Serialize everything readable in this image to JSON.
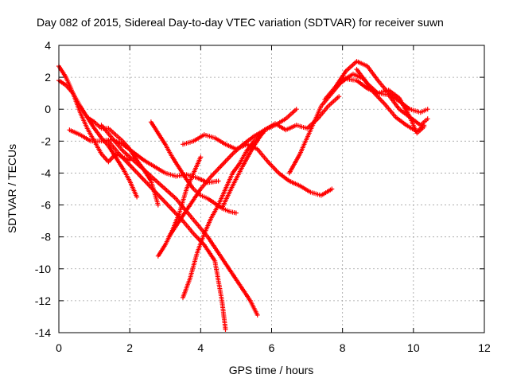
{
  "chart_data": {
    "type": "scatter",
    "title": "Day 082 of 2015, Sidereal Day-to-day VTEC variation (SDTVAR) for receiver suwn",
    "xlabel": "GPS time / hours",
    "ylabel": "SDTVAR / TECUs",
    "xlim": [
      0,
      12
    ],
    "ylim": [
      -14,
      4
    ],
    "x_ticks": [
      "0",
      "2",
      "4",
      "6",
      "8",
      "10",
      "12"
    ],
    "y_ticks": [
      "4",
      "2",
      "0",
      "-2",
      "-4",
      "-6",
      "-8",
      "-10",
      "-12",
      "-14"
    ],
    "grid": true,
    "marker": "+",
    "color": "#ff0000",
    "series": [
      {
        "x": [
          0.0,
          0.2,
          0.4,
          0.6,
          0.8,
          1.0,
          1.2,
          1.4,
          1.6,
          1.8,
          2.0,
          2.2
        ],
        "y": [
          1.8,
          1.5,
          1.0,
          0.2,
          -0.5,
          -1.2,
          -1.8,
          -2.3,
          -3.0,
          -3.7,
          -4.5,
          -5.5
        ]
      },
      {
        "x": [
          0.0,
          0.2,
          0.4,
          0.6,
          0.8,
          1.0,
          1.2,
          1.4,
          1.6,
          1.8,
          2.0
        ],
        "y": [
          2.7,
          2.0,
          1.0,
          -0.2,
          -1.2,
          -2.0,
          -2.8,
          -3.3,
          -2.8,
          -3.0,
          -3.2
        ]
      },
      {
        "x": [
          0.3,
          0.6,
          0.9,
          1.2,
          1.5,
          1.8,
          2.1,
          2.4,
          2.7,
          3.0,
          3.3,
          3.6,
          3.9,
          4.2,
          4.5
        ],
        "y": [
          -1.3,
          -1.6,
          -2.0,
          -2.0,
          -1.9,
          -2.2,
          -2.7,
          -3.2,
          -3.6,
          -4.0,
          -4.2,
          -4.1,
          -4.3,
          -4.6,
          -4.5
        ]
      },
      {
        "x": [
          0.8,
          1.0,
          1.2,
          1.4,
          1.6,
          1.8,
          2.0,
          2.2,
          2.4,
          2.6,
          2.8
        ],
        "y": [
          -0.5,
          -0.8,
          -1.2,
          -1.2,
          -1.6,
          -2.0,
          -2.5,
          -3.2,
          -3.8,
          -4.5,
          -6.0
        ]
      },
      {
        "x": [
          1.2,
          1.5,
          1.8,
          2.1,
          2.4,
          2.7,
          3.0,
          3.3,
          3.6,
          3.9,
          4.2,
          4.5,
          4.8,
          5.1,
          5.4,
          5.6
        ],
        "y": [
          -1.0,
          -1.8,
          -2.6,
          -3.2,
          -3.8,
          -4.4,
          -5.0,
          -5.6,
          -6.4,
          -7.2,
          -8.0,
          -9.0,
          -10.0,
          -11.0,
          -12.0,
          -12.9
        ]
      },
      {
        "x": [
          1.4,
          1.7,
          2.0,
          2.3,
          2.6,
          2.9,
          3.2,
          3.5,
          3.8,
          4.1,
          4.4,
          4.6,
          4.7
        ],
        "y": [
          -2.0,
          -2.8,
          -3.5,
          -4.2,
          -4.9,
          -5.6,
          -6.3,
          -7.0,
          -7.8,
          -8.5,
          -9.5,
          -12.0,
          -13.8
        ]
      },
      {
        "x": [
          2.6,
          2.8,
          3.0,
          3.2,
          3.4,
          3.6,
          3.8,
          4.0,
          4.2,
          4.4,
          4.6,
          4.8,
          5.0
        ],
        "y": [
          -0.8,
          -1.5,
          -2.2,
          -3.0,
          -3.7,
          -4.4,
          -5.0,
          -5.4,
          -5.6,
          -5.9,
          -6.2,
          -6.4,
          -6.5
        ]
      },
      {
        "x": [
          2.8,
          3.0,
          3.2,
          3.4,
          3.6,
          3.8,
          4.0
        ],
        "y": [
          -9.2,
          -8.5,
          -7.6,
          -6.5,
          -5.0,
          -4.0,
          -3.0
        ]
      },
      {
        "x": [
          3.1,
          3.4,
          3.7,
          4.0,
          4.3,
          4.6,
          4.9,
          5.2,
          5.5,
          5.8,
          6.1,
          6.4,
          6.7
        ],
        "y": [
          -8.0,
          -7.0,
          -6.0,
          -5.0,
          -4.2,
          -3.5,
          -2.8,
          -2.2,
          -1.7,
          -1.3,
          -1.0,
          -0.6,
          0.0
        ]
      },
      {
        "x": [
          3.5,
          3.7,
          3.9,
          4.1,
          4.3,
          4.5,
          4.7,
          4.9,
          5.1,
          5.3,
          5.5,
          5.8
        ],
        "y": [
          -11.8,
          -10.6,
          -9.0,
          -7.8,
          -6.8,
          -6.0,
          -5.0,
          -4.0,
          -3.4,
          -2.6,
          -2.0,
          -1.4
        ]
      },
      {
        "x": [
          3.5,
          3.8,
          4.1,
          4.4,
          4.7,
          5.0,
          5.3,
          5.6,
          5.9,
          6.2,
          6.5,
          6.8,
          7.1,
          7.4,
          7.7
        ],
        "y": [
          -2.2,
          -2.0,
          -1.6,
          -1.8,
          -2.2,
          -2.5,
          -2.2,
          -2.5,
          -3.3,
          -4.0,
          -4.5,
          -4.8,
          -5.2,
          -5.4,
          -5.0
        ]
      },
      {
        "x": [
          4.6,
          4.9,
          5.2,
          5.5,
          5.8,
          6.1,
          6.4,
          6.7,
          7.0,
          7.3,
          7.6,
          7.9
        ],
        "y": [
          -6.2,
          -4.8,
          -3.5,
          -2.3,
          -1.3,
          -0.9,
          -1.3,
          -1.0,
          -1.2,
          -0.6,
          0.2,
          0.8
        ]
      },
      {
        "x": [
          6.5,
          6.8,
          7.1,
          7.4,
          7.7,
          8.0,
          8.3,
          8.6,
          8.9,
          9.2,
          9.5,
          9.8,
          10.1,
          10.3
        ],
        "y": [
          -4.0,
          -2.8,
          -1.3,
          0.2,
          1.0,
          1.8,
          2.2,
          1.9,
          1.0,
          0.3,
          -0.5,
          -1.0,
          -1.4,
          -1.0
        ]
      },
      {
        "x": [
          7.8,
          8.1,
          8.4,
          8.7,
          9.0,
          9.3,
          9.6,
          9.9,
          10.2,
          10.4
        ],
        "y": [
          1.4,
          2.4,
          3.0,
          2.7,
          1.8,
          1.0,
          0.5,
          0.0,
          -0.2,
          0.0
        ]
      },
      {
        "x": [
          7.5,
          7.8,
          8.1,
          8.4,
          8.7,
          9.0,
          9.3,
          9.6,
          9.9,
          10.1,
          10.3
        ],
        "y": [
          0.6,
          1.4,
          1.9,
          1.8,
          1.3,
          1.0,
          1.2,
          0.7,
          -0.5,
          -1.5,
          -1.1
        ]
      },
      {
        "x": [
          8.4,
          8.7,
          9.0,
          9.3,
          9.6,
          9.9,
          10.2,
          10.4
        ],
        "y": [
          2.5,
          1.6,
          1.0,
          0.9,
          0.0,
          -0.5,
          -1.0,
          -0.6
        ]
      }
    ]
  }
}
